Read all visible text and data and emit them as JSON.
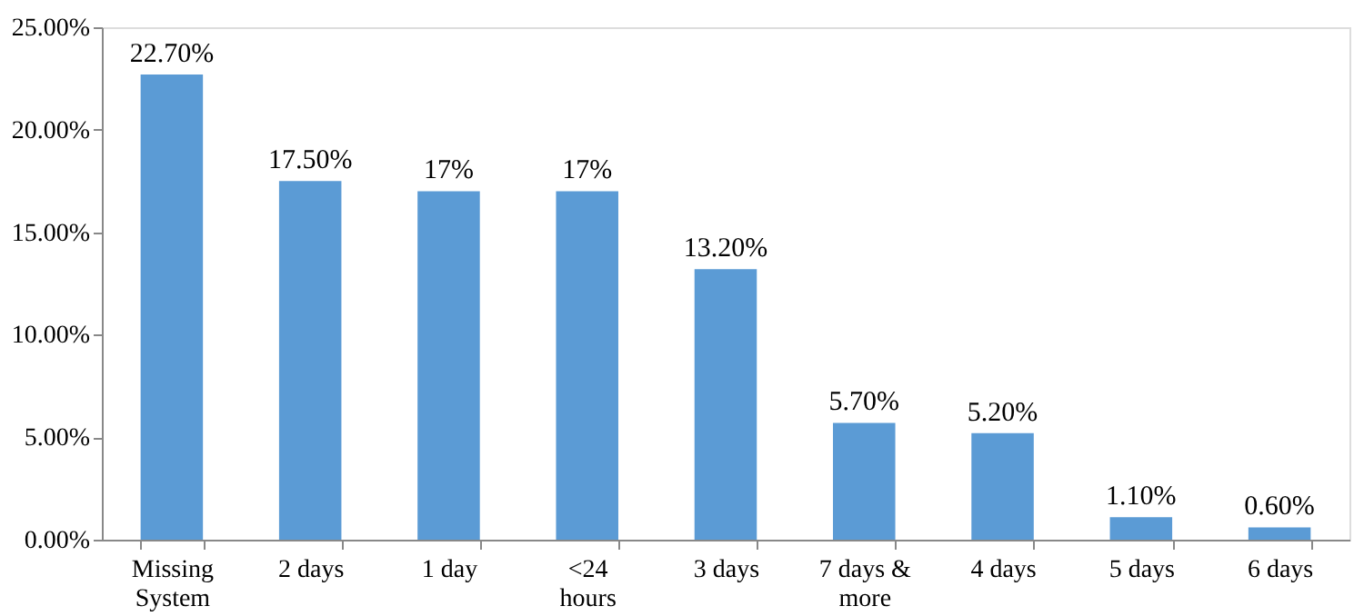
{
  "chart_data": {
    "type": "bar",
    "categories": [
      "Missing System",
      "2 days",
      "1 day",
      "<24 hours",
      "3 days",
      "7 days & more",
      "4 days",
      "5 days",
      "6 days"
    ],
    "values": [
      22.7,
      17.5,
      17,
      17,
      13.2,
      5.7,
      5.2,
      1.1,
      0.6
    ],
    "value_labels": [
      "22.70%",
      "17.50%",
      "17%",
      "17%",
      "13.20%",
      "5.70%",
      "5.20%",
      "1.10%",
      "0.60%"
    ],
    "color": "#5b9bd5",
    "ylim": [
      0,
      25
    ],
    "yticks": [
      {
        "value": 0,
        "label": "0.00%"
      },
      {
        "value": 5,
        "label": "5.00%"
      },
      {
        "value": 10,
        "label": "10.00%"
      },
      {
        "value": 15,
        "label": "15.00%"
      },
      {
        "value": 20,
        "label": "20.00%"
      },
      {
        "value": 25,
        "label": "25.00%"
      }
    ],
    "grid": false
  }
}
